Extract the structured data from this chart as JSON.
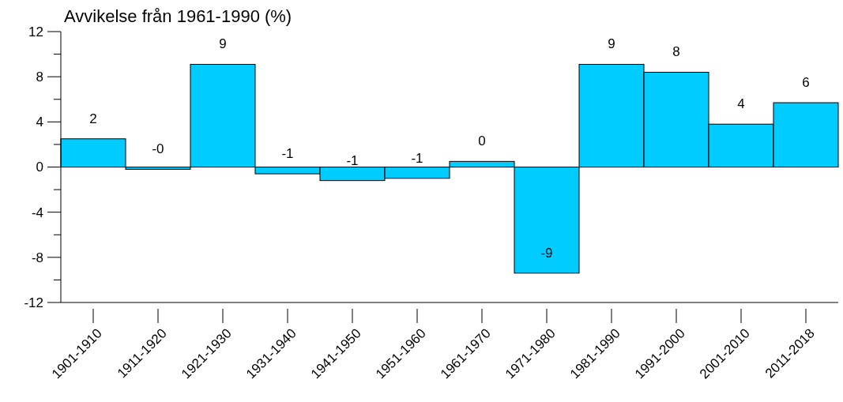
{
  "chart_data": {
    "type": "bar",
    "ylabel": "Avvikelse från 1961-1990 (%)",
    "categories": [
      "1901-1910",
      "1911-1920",
      "1921-1930",
      "1931-1940",
      "1941-1950",
      "1951-1960",
      "1961-1970",
      "1971-1980",
      "1981-1990",
      "1991-2000",
      "2001-2010",
      "2011-2018"
    ],
    "values": [
      2.5,
      -0.2,
      9.1,
      -0.6,
      -1.2,
      -1.0,
      0.5,
      -9.4,
      9.1,
      8.4,
      3.8,
      5.7
    ],
    "value_labels": [
      "2",
      "-0",
      "9",
      "-1",
      "-1",
      "-1",
      "0",
      "-9",
      "9",
      "8",
      "4",
      "6"
    ],
    "color": "#00ccff",
    "ylim": [
      -12,
      12
    ],
    "yticks": [
      -12,
      {
        "value": -10,
        "label": null
      },
      -8,
      {
        "value": -6,
        "label": null
      },
      -4,
      {
        "value": -2,
        "label": null
      },
      0,
      {
        "value": 2,
        "label": null
      },
      4,
      {
        "value": 6,
        "label": null
      },
      8,
      {
        "value": 10,
        "label": null
      },
      12
    ],
    "grid": false
  }
}
